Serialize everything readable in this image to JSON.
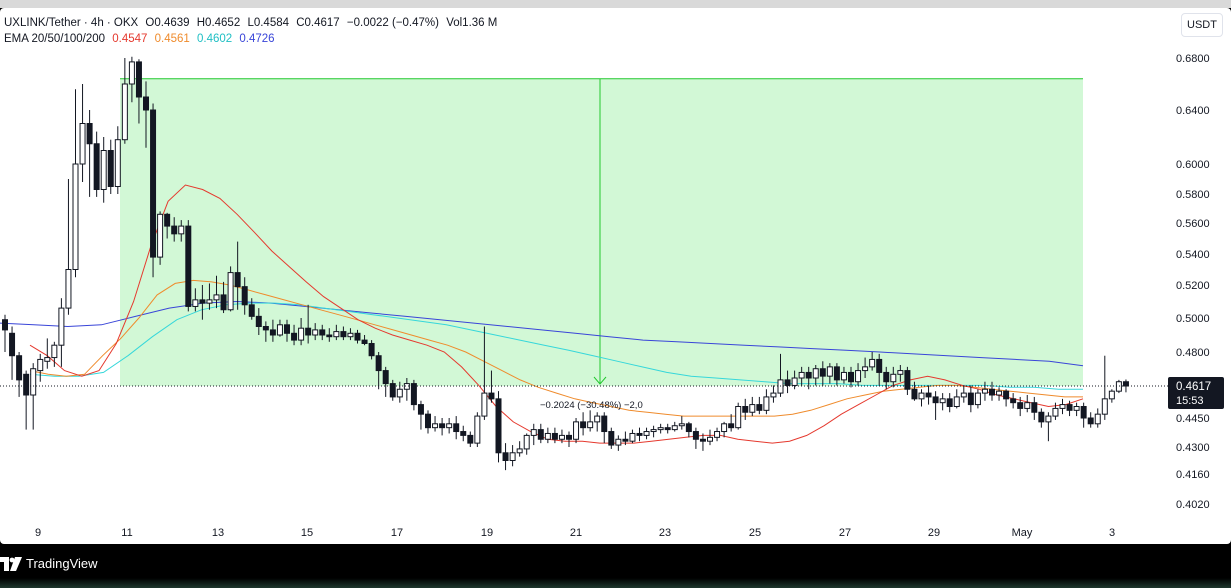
{
  "header": {
    "symbol": "UXLINK/Tether · 4h · OKX",
    "o": "O0.4639",
    "h": "H0.4652",
    "l": "L0.4584",
    "c": "C0.4617",
    "chg": "−0.0022 (−0.47%)",
    "vol": "Vol1.36 M",
    "ema_label": "EMA 20/50/100/200",
    "ema_values": [
      "0.4547",
      "0.4561",
      "0.4602",
      "0.4726"
    ]
  },
  "currency_label": "USDT",
  "price_tag": {
    "price": "0.4617",
    "countdown": "15:53"
  },
  "measure_label": "−0.2024 (−30.48%) −2,0",
  "footer": {
    "brand": "TradingView"
  },
  "colors": {
    "up": "#131722",
    "down": "#131722",
    "zone": "#d2f8d6",
    "zone_border": "#22c82e",
    "ema20": "#e5392e",
    "ema50": "#ef8b2c",
    "ema100": "#36d7da",
    "ema200": "#3945d8",
    "text": "#131722"
  },
  "chart_data": {
    "type": "candlestick",
    "y_ticks": [
      "0.6800",
      "0.6400",
      "0.6000",
      "0.5800",
      "0.5600",
      "0.5400",
      "0.5200",
      "0.5000",
      "0.4800",
      "0.4450",
      "0.4300",
      "0.4160",
      "0.4020"
    ],
    "x_ticks": [
      "9",
      "11",
      "13",
      "15",
      "17",
      "19",
      "21",
      "23",
      "25",
      "27",
      "29",
      "May",
      "3"
    ],
    "measure_zone": {
      "from_price": 0.664,
      "to_price": 0.4617
    },
    "candles": [
      [
        0.499,
        0.493,
        0.502,
        0.48
      ],
      [
        0.491,
        0.478,
        0.495,
        0.465
      ],
      [
        0.478,
        0.465,
        0.48,
        0.456
      ],
      [
        0.468,
        0.457,
        0.47,
        0.439
      ],
      [
        0.457,
        0.471,
        0.474,
        0.439
      ],
      [
        0.47,
        0.476,
        0.479,
        0.464
      ],
      [
        0.475,
        0.477,
        0.488,
        0.471
      ],
      [
        0.477,
        0.484,
        0.486,
        0.472
      ],
      [
        0.484,
        0.506,
        0.512,
        0.472
      ],
      [
        0.506,
        0.53,
        0.59,
        0.502
      ],
      [
        0.53,
        0.6,
        0.656,
        0.525
      ],
      [
        0.6,
        0.63,
        0.66,
        0.588
      ],
      [
        0.63,
        0.615,
        0.64,
        0.578
      ],
      [
        0.615,
        0.583,
        0.624,
        0.578
      ],
      [
        0.583,
        0.61,
        0.62,
        0.574
      ],
      [
        0.61,
        0.585,
        0.618,
        0.58
      ],
      [
        0.585,
        0.618,
        0.628,
        0.58
      ],
      [
        0.618,
        0.66,
        0.68,
        0.615
      ],
      [
        0.66,
        0.677,
        0.681,
        0.646
      ],
      [
        0.677,
        0.65,
        0.679,
        0.63
      ],
      [
        0.65,
        0.64,
        0.662,
        0.612
      ],
      [
        0.64,
        0.538,
        0.645,
        0.525
      ],
      [
        0.538,
        0.566,
        0.568,
        0.533
      ],
      [
        0.566,
        0.558,
        0.567,
        0.55
      ],
      [
        0.558,
        0.553,
        0.564,
        0.548
      ],
      [
        0.553,
        0.558,
        0.562,
        0.548
      ],
      [
        0.558,
        0.507,
        0.562,
        0.504
      ],
      [
        0.507,
        0.511,
        0.518,
        0.504
      ],
      [
        0.511,
        0.509,
        0.52,
        0.499
      ],
      [
        0.509,
        0.511,
        0.521,
        0.505
      ],
      [
        0.511,
        0.514,
        0.526,
        0.506
      ],
      [
        0.514,
        0.505,
        0.522,
        0.503
      ],
      [
        0.505,
        0.528,
        0.532,
        0.504
      ],
      [
        0.528,
        0.519,
        0.548,
        0.505
      ],
      [
        0.519,
        0.508,
        0.525,
        0.502
      ],
      [
        0.508,
        0.501,
        0.512,
        0.499
      ],
      [
        0.501,
        0.495,
        0.506,
        0.49
      ],
      [
        0.495,
        0.493,
        0.498,
        0.486
      ],
      [
        0.493,
        0.49,
        0.499,
        0.486
      ],
      [
        0.49,
        0.496,
        0.499,
        0.489
      ],
      [
        0.496,
        0.491,
        0.499,
        0.486
      ],
      [
        0.491,
        0.487,
        0.496,
        0.484
      ],
      [
        0.487,
        0.494,
        0.5,
        0.484
      ],
      [
        0.494,
        0.49,
        0.508,
        0.485
      ],
      [
        0.49,
        0.493,
        0.497,
        0.487
      ],
      [
        0.493,
        0.49,
        0.496,
        0.487
      ],
      [
        0.49,
        0.489,
        0.494,
        0.486
      ],
      [
        0.489,
        0.492,
        0.496,
        0.487
      ],
      [
        0.492,
        0.489,
        0.495,
        0.487
      ],
      [
        0.489,
        0.491,
        0.494,
        0.487
      ],
      [
        0.491,
        0.487,
        0.493,
        0.485
      ],
      [
        0.487,
        0.485,
        0.49,
        0.484
      ],
      [
        0.485,
        0.478,
        0.487,
        0.476
      ],
      [
        0.478,
        0.47,
        0.48,
        0.46
      ],
      [
        0.47,
        0.463,
        0.472,
        0.456
      ],
      [
        0.463,
        0.456,
        0.465,
        0.454
      ],
      [
        0.456,
        0.46,
        0.464,
        0.453
      ],
      [
        0.46,
        0.463,
        0.466,
        0.454
      ],
      [
        0.463,
        0.452,
        0.465,
        0.449
      ],
      [
        0.452,
        0.447,
        0.454,
        0.439
      ],
      [
        0.447,
        0.44,
        0.449,
        0.437
      ],
      [
        0.44,
        0.442,
        0.446,
        0.438
      ],
      [
        0.442,
        0.44,
        0.445,
        0.436
      ],
      [
        0.44,
        0.442,
        0.445,
        0.437
      ],
      [
        0.442,
        0.438,
        0.446,
        0.434
      ],
      [
        0.438,
        0.436,
        0.441,
        0.433
      ],
      [
        0.436,
        0.432,
        0.438,
        0.43
      ],
      [
        0.432,
        0.446,
        0.448,
        0.43
      ],
      [
        0.446,
        0.458,
        0.495,
        0.444
      ],
      [
        0.458,
        0.455,
        0.47,
        0.453
      ],
      [
        0.455,
        0.427,
        0.459,
        0.422
      ],
      [
        0.427,
        0.423,
        0.432,
        0.418
      ],
      [
        0.423,
        0.427,
        0.431,
        0.42
      ],
      [
        0.427,
        0.429,
        0.433,
        0.425
      ],
      [
        0.429,
        0.436,
        0.437,
        0.426
      ],
      [
        0.436,
        0.439,
        0.442,
        0.431
      ],
      [
        0.439,
        0.434,
        0.442,
        0.432
      ],
      [
        0.434,
        0.437,
        0.44,
        0.432
      ],
      [
        0.437,
        0.434,
        0.44,
        0.432
      ],
      [
        0.434,
        0.436,
        0.439,
        0.432
      ],
      [
        0.436,
        0.434,
        0.438,
        0.43
      ],
      [
        0.434,
        0.443,
        0.445,
        0.432
      ],
      [
        0.443,
        0.44,
        0.448,
        0.436
      ],
      [
        0.44,
        0.443,
        0.449,
        0.438
      ],
      [
        0.443,
        0.446,
        0.448,
        0.438
      ],
      [
        0.446,
        0.438,
        0.448,
        0.432
      ],
      [
        0.438,
        0.431,
        0.44,
        0.429
      ],
      [
        0.431,
        0.434,
        0.436,
        0.428
      ],
      [
        0.434,
        0.433,
        0.438,
        0.431
      ],
      [
        0.433,
        0.437,
        0.439,
        0.432
      ],
      [
        0.437,
        0.436,
        0.44,
        0.433
      ],
      [
        0.436,
        0.438,
        0.44,
        0.434
      ],
      [
        0.438,
        0.439,
        0.441,
        0.435
      ],
      [
        0.439,
        0.44,
        0.442,
        0.437
      ],
      [
        0.44,
        0.439,
        0.442,
        0.437
      ],
      [
        0.439,
        0.441,
        0.443,
        0.438
      ],
      [
        0.441,
        0.442,
        0.446,
        0.439
      ],
      [
        0.442,
        0.438,
        0.443,
        0.435
      ],
      [
        0.438,
        0.434,
        0.44,
        0.429
      ],
      [
        0.434,
        0.433,
        0.437,
        0.428
      ],
      [
        0.433,
        0.435,
        0.439,
        0.431
      ],
      [
        0.435,
        0.438,
        0.44,
        0.433
      ],
      [
        0.438,
        0.442,
        0.443,
        0.435
      ],
      [
        0.442,
        0.44,
        0.447,
        0.438
      ],
      [
        0.44,
        0.451,
        0.453,
        0.439
      ],
      [
        0.451,
        0.448,
        0.455,
        0.444
      ],
      [
        0.448,
        0.452,
        0.456,
        0.446
      ],
      [
        0.452,
        0.449,
        0.456,
        0.447
      ],
      [
        0.449,
        0.456,
        0.46,
        0.447
      ],
      [
        0.456,
        0.458,
        0.462,
        0.453
      ],
      [
        0.458,
        0.465,
        0.479,
        0.456
      ],
      [
        0.465,
        0.462,
        0.47,
        0.458
      ],
      [
        0.462,
        0.466,
        0.47,
        0.46
      ],
      [
        0.466,
        0.469,
        0.472,
        0.462
      ],
      [
        0.469,
        0.466,
        0.472,
        0.46
      ],
      [
        0.466,
        0.471,
        0.473,
        0.462
      ],
      [
        0.471,
        0.467,
        0.475,
        0.462
      ],
      [
        0.467,
        0.472,
        0.474,
        0.463
      ],
      [
        0.472,
        0.465,
        0.474,
        0.462
      ],
      [
        0.465,
        0.469,
        0.472,
        0.463
      ],
      [
        0.469,
        0.464,
        0.472,
        0.461
      ],
      [
        0.464,
        0.47,
        0.474,
        0.462
      ],
      [
        0.47,
        0.472,
        0.477,
        0.466
      ],
      [
        0.472,
        0.476,
        0.48,
        0.47
      ],
      [
        0.476,
        0.469,
        0.479,
        0.462
      ],
      [
        0.469,
        0.464,
        0.472,
        0.46
      ],
      [
        0.464,
        0.468,
        0.472,
        0.461
      ],
      [
        0.468,
        0.47,
        0.473,
        0.464
      ],
      [
        0.47,
        0.46,
        0.472,
        0.457
      ],
      [
        0.46,
        0.455,
        0.464,
        0.454
      ],
      [
        0.455,
        0.458,
        0.46,
        0.451
      ],
      [
        0.458,
        0.456,
        0.462,
        0.452
      ],
      [
        0.456,
        0.453,
        0.459,
        0.444
      ],
      [
        0.453,
        0.455,
        0.458,
        0.449
      ],
      [
        0.455,
        0.451,
        0.458,
        0.448
      ],
      [
        0.451,
        0.456,
        0.46,
        0.45
      ],
      [
        0.456,
        0.458,
        0.462,
        0.453
      ],
      [
        0.458,
        0.452,
        0.462,
        0.448
      ],
      [
        0.452,
        0.458,
        0.46,
        0.45
      ],
      [
        0.458,
        0.46,
        0.464,
        0.454
      ],
      [
        0.46,
        0.457,
        0.464,
        0.454
      ],
      [
        0.457,
        0.459,
        0.461,
        0.454
      ],
      [
        0.459,
        0.455,
        0.46,
        0.451
      ],
      [
        0.455,
        0.453,
        0.458,
        0.45
      ],
      [
        0.453,
        0.45,
        0.456,
        0.446
      ],
      [
        0.45,
        0.453,
        0.457,
        0.448
      ],
      [
        0.453,
        0.448,
        0.456,
        0.444
      ],
      [
        0.448,
        0.443,
        0.45,
        0.44
      ],
      [
        0.443,
        0.446,
        0.448,
        0.433
      ],
      [
        0.446,
        0.45,
        0.453,
        0.444
      ],
      [
        0.45,
        0.452,
        0.455,
        0.447
      ],
      [
        0.452,
        0.449,
        0.454,
        0.446
      ],
      [
        0.449,
        0.451,
        0.453,
        0.446
      ],
      [
        0.451,
        0.445,
        0.453,
        0.44
      ],
      [
        0.445,
        0.442,
        0.448,
        0.44
      ],
      [
        0.442,
        0.447,
        0.45,
        0.44
      ],
      [
        0.447,
        0.455,
        0.478,
        0.444
      ],
      [
        0.455,
        0.459,
        0.46,
        0.453
      ],
      [
        0.459,
        0.464,
        0.465,
        0.458
      ],
      [
        0.464,
        0.4617,
        0.4652,
        0.4584
      ]
    ],
    "ema20": [
      0.484,
      0.478,
      0.47,
      0.467,
      0.47,
      0.485,
      0.51,
      0.545,
      0.575,
      0.586,
      0.583,
      0.577,
      0.566,
      0.554,
      0.542,
      0.532,
      0.522,
      0.513,
      0.506,
      0.499,
      0.494,
      0.49,
      0.487,
      0.484,
      0.48,
      0.472,
      0.462,
      0.451,
      0.443,
      0.438,
      0.434,
      0.433,
      0.433,
      0.432,
      0.432,
      0.432,
      0.433,
      0.434,
      0.435,
      0.436,
      0.436,
      0.434,
      0.433,
      0.432,
      0.433,
      0.436,
      0.441,
      0.447,
      0.452,
      0.457,
      0.462,
      0.465,
      0.467,
      0.465,
      0.462,
      0.46,
      0.457,
      0.455,
      0.453,
      0.451,
      0.452,
      0.455
    ],
    "ema50": [
      0.47,
      0.468,
      0.467,
      0.468,
      0.478,
      0.488,
      0.5,
      0.514,
      0.521,
      0.523,
      0.522,
      0.52,
      0.517,
      0.514,
      0.511,
      0.508,
      0.505,
      0.502,
      0.499,
      0.496,
      0.493,
      0.49,
      0.487,
      0.484,
      0.48,
      0.475,
      0.47,
      0.465,
      0.461,
      0.458,
      0.455,
      0.453,
      0.451,
      0.449,
      0.448,
      0.447,
      0.446,
      0.446,
      0.446,
      0.446,
      0.446,
      0.446,
      0.447,
      0.449,
      0.452,
      0.455,
      0.457,
      0.459,
      0.46,
      0.461,
      0.462,
      0.462,
      0.461,
      0.46,
      0.459,
      0.458,
      0.457,
      0.456,
      0.456
    ],
    "ema100": [
      0.468,
      0.467,
      0.467,
      0.469,
      0.478,
      0.489,
      0.499,
      0.505,
      0.508,
      0.509,
      0.509,
      0.508,
      0.506,
      0.504,
      0.502,
      0.5,
      0.498,
      0.496,
      0.493,
      0.49,
      0.487,
      0.484,
      0.481,
      0.478,
      0.475,
      0.472,
      0.469,
      0.467,
      0.466,
      0.465,
      0.464,
      0.463,
      0.463,
      0.463,
      0.462,
      0.462,
      0.462,
      0.462,
      0.462,
      0.462,
      0.461,
      0.461,
      0.46,
      0.46
    ],
    "ema200": [
      0.497,
      0.496,
      0.495,
      0.496,
      0.501,
      0.506,
      0.509,
      0.51,
      0.509,
      0.507,
      0.505,
      0.503,
      0.501,
      0.499,
      0.497,
      0.495,
      0.493,
      0.491,
      0.489,
      0.487,
      0.486,
      0.485,
      0.484,
      0.483,
      0.482,
      0.481,
      0.48,
      0.479,
      0.478,
      0.477,
      0.476,
      0.475,
      0.4726
    ]
  }
}
